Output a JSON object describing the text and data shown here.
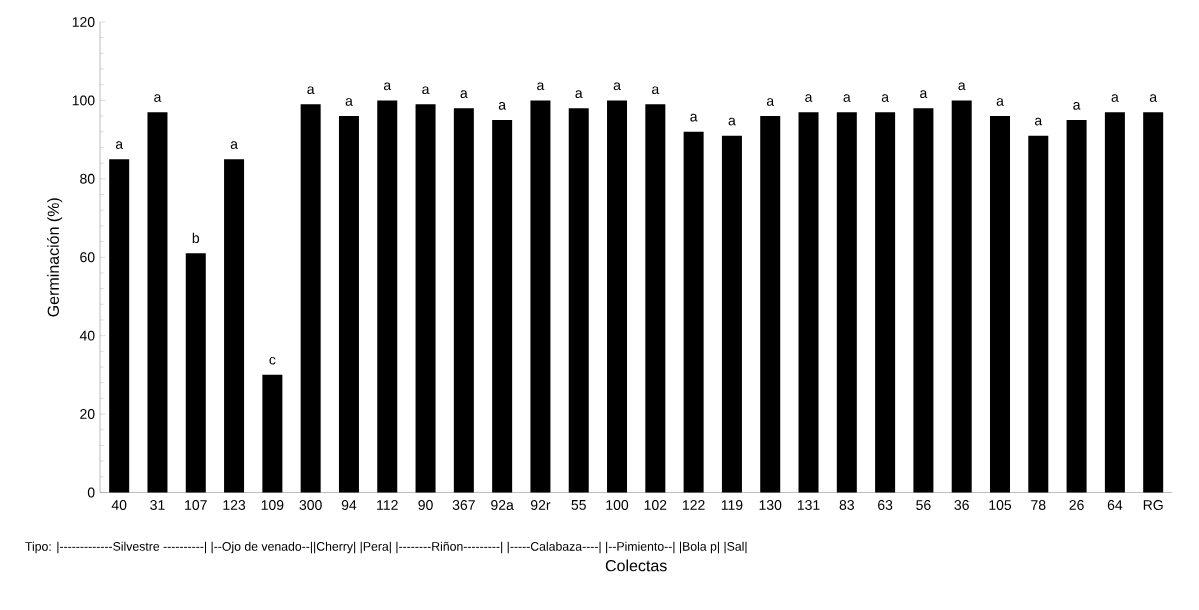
{
  "chart_data": {
    "type": "bar",
    "xlabel": "Colectas",
    "ylabel": "Germinación (%)",
    "categories": [
      "40",
      "31",
      "107",
      "123",
      "109",
      "300",
      "94",
      "112",
      "90",
      "367",
      "92a",
      "92r",
      "55",
      "100",
      "102",
      "122",
      "119",
      "130",
      "131",
      "83",
      "63",
      "56",
      "36",
      "105",
      "78",
      "26",
      "64",
      "RG"
    ],
    "values": [
      85,
      97,
      61,
      85,
      30,
      99,
      96,
      100,
      99,
      98,
      95,
      100,
      98,
      100,
      99,
      92,
      91,
      96,
      97,
      97,
      97,
      98,
      100,
      96,
      91,
      95,
      97,
      97
    ],
    "value_labels": [
      "a",
      "a",
      "b",
      "a",
      "c",
      "a",
      "a",
      "a",
      "a",
      "a",
      "a",
      "a",
      "a",
      "a",
      "a",
      "a",
      "a",
      "a",
      "a",
      "a",
      "a",
      "a",
      "a",
      "a",
      "a",
      "a",
      "a",
      "a"
    ],
    "color": "#000000",
    "ylim": [
      0,
      120
    ],
    "yticks": [
      0,
      20,
      40,
      60,
      80,
      100,
      120
    ],
    "annotations": [
      "Tipo:  |-------------Silvestre ----------|  |--Ojo de venado--||Cherry|  |Pera| |--------Riñon---------|  |-----Calabaza----|  |--Pimiento--|  |Bola p|  |Sal|"
    ]
  }
}
